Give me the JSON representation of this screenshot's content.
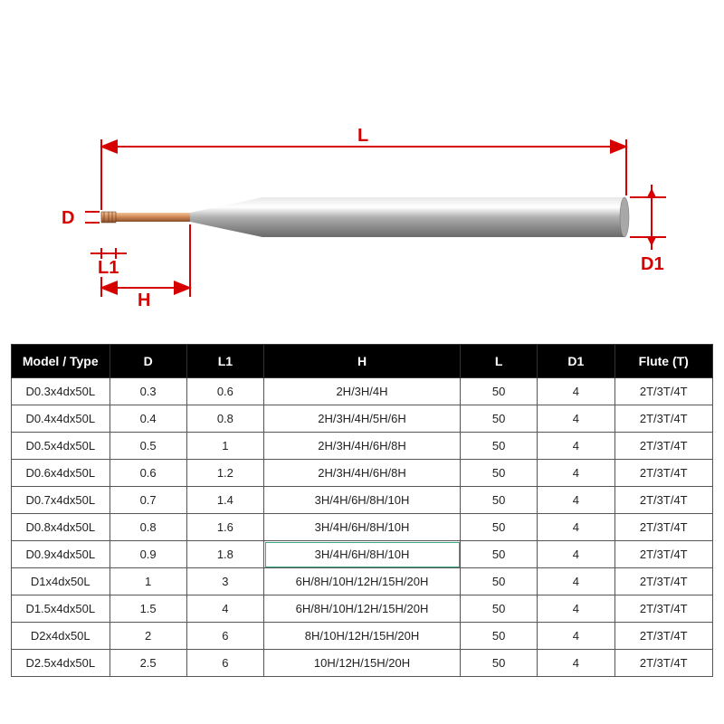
{
  "diagram": {
    "labels": {
      "D": "D",
      "L1": "L1",
      "H": "H",
      "L": "L",
      "D1": "D1"
    },
    "colors": {
      "dimension": "#d60000",
      "shank": "#b0b0b0",
      "shank_hi": "#d8d8d8",
      "shank_lo": "#7e7e7e",
      "tip": "#c87848",
      "tip_hi": "#e0a578",
      "tip_lo": "#8a4e2a"
    }
  },
  "table": {
    "headers": [
      "Model / Type",
      "D",
      "L1",
      "H",
      "L",
      "D1",
      "Flute (T)"
    ],
    "column_widths_pct": [
      14,
      11,
      11,
      28,
      11,
      11,
      14
    ],
    "highlight": {
      "row": 6,
      "col": 3,
      "color": "#3aa67e"
    },
    "rows": [
      [
        "D0.3x4dx50L",
        "0.3",
        "0.6",
        "2H/3H/4H",
        "50",
        "4",
        "2T/3T/4T"
      ],
      [
        "D0.4x4dx50L",
        "0.4",
        "0.8",
        "2H/3H/4H/5H/6H",
        "50",
        "4",
        "2T/3T/4T"
      ],
      [
        "D0.5x4dx50L",
        "0.5",
        "1",
        "2H/3H/4H/6H/8H",
        "50",
        "4",
        "2T/3T/4T"
      ],
      [
        "D0.6x4dx50L",
        "0.6",
        "1.2",
        "2H/3H/4H/6H/8H",
        "50",
        "4",
        "2T/3T/4T"
      ],
      [
        "D0.7x4dx50L",
        "0.7",
        "1.4",
        "3H/4H/6H/8H/10H",
        "50",
        "4",
        "2T/3T/4T"
      ],
      [
        "D0.8x4dx50L",
        "0.8",
        "1.6",
        "3H/4H/6H/8H/10H",
        "50",
        "4",
        "2T/3T/4T"
      ],
      [
        "D0.9x4dx50L",
        "0.9",
        "1.8",
        "3H/4H/6H/8H/10H",
        "50",
        "4",
        "2T/3T/4T"
      ],
      [
        "D1x4dx50L",
        "1",
        "3",
        "6H/8H/10H/12H/15H/20H",
        "50",
        "4",
        "2T/3T/4T"
      ],
      [
        "D1.5x4dx50L",
        "1.5",
        "4",
        "6H/8H/10H/12H/15H/20H",
        "50",
        "4",
        "2T/3T/4T"
      ],
      [
        "D2x4dx50L",
        "2",
        "6",
        "8H/10H/12H/15H/20H",
        "50",
        "4",
        "2T/3T/4T"
      ],
      [
        "D2.5x4dx50L",
        "2.5",
        "6",
        "10H/12H/15H/20H",
        "50",
        "4",
        "2T/3T/4T"
      ]
    ]
  }
}
